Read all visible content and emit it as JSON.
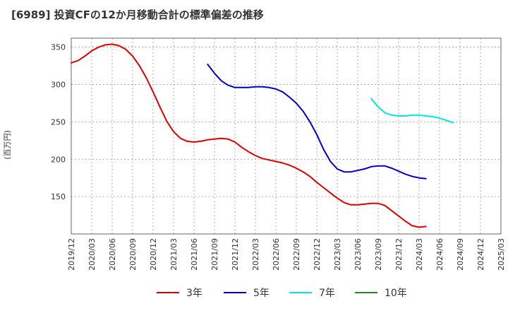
{
  "chart_data": {
    "type": "line",
    "title": "[6989]  投資CFの12か月移動合計の標準偏差の推移",
    "ylabel": "(百万円)",
    "xlabel": "",
    "ylim": [
      100,
      362
    ],
    "yticks": [
      150,
      200,
      250,
      300,
      350
    ],
    "x_ticks": [
      "2019/12",
      "2020/03",
      "2020/06",
      "2020/09",
      "2020/12",
      "2021/03",
      "2021/06",
      "2021/09",
      "2021/12",
      "2022/03",
      "2022/06",
      "2022/09",
      "2022/12",
      "2023/03",
      "2023/06",
      "2023/09",
      "2023/12",
      "2024/03",
      "2024/06",
      "2024/09",
      "2024/12",
      "2025/03"
    ],
    "grid": true,
    "legend_position": "bottom",
    "series": [
      {
        "name": "3年",
        "color": "#dd0000",
        "points": [
          [
            "2019/12",
            329
          ],
          [
            "2020/01",
            332
          ],
          [
            "2020/02",
            338
          ],
          [
            "2020/03",
            345
          ],
          [
            "2020/04",
            350
          ],
          [
            "2020/05",
            353
          ],
          [
            "2020/06",
            354
          ],
          [
            "2020/07",
            352
          ],
          [
            "2020/08",
            347
          ],
          [
            "2020/09",
            338
          ],
          [
            "2020/10",
            325
          ],
          [
            "2020/11",
            309
          ],
          [
            "2020/12",
            290
          ],
          [
            "2021/01",
            270
          ],
          [
            "2021/02",
            251
          ],
          [
            "2021/03",
            237
          ],
          [
            "2021/04",
            228
          ],
          [
            "2021/05",
            224
          ],
          [
            "2021/06",
            223
          ],
          [
            "2021/07",
            224
          ],
          [
            "2021/08",
            226
          ],
          [
            "2021/09",
            227
          ],
          [
            "2021/10",
            228
          ],
          [
            "2021/11",
            227
          ],
          [
            "2021/12",
            223
          ],
          [
            "2022/01",
            216
          ],
          [
            "2022/02",
            210
          ],
          [
            "2022/03",
            205
          ],
          [
            "2022/04",
            201
          ],
          [
            "2022/05",
            199
          ],
          [
            "2022/06",
            197
          ],
          [
            "2022/07",
            195
          ],
          [
            "2022/08",
            192
          ],
          [
            "2022/09",
            188
          ],
          [
            "2022/10",
            183
          ],
          [
            "2022/11",
            177
          ],
          [
            "2022/12",
            169
          ],
          [
            "2023/01",
            162
          ],
          [
            "2023/02",
            155
          ],
          [
            "2023/03",
            148
          ],
          [
            "2023/04",
            142
          ],
          [
            "2023/05",
            139
          ],
          [
            "2023/06",
            139
          ],
          [
            "2023/07",
            140
          ],
          [
            "2023/08",
            141
          ],
          [
            "2023/09",
            141
          ],
          [
            "2023/10",
            138
          ],
          [
            "2023/11",
            131
          ],
          [
            "2023/12",
            124
          ],
          [
            "2024/01",
            117
          ],
          [
            "2024/02",
            111
          ],
          [
            "2024/03",
            109
          ],
          [
            "2024/04",
            110
          ]
        ]
      },
      {
        "name": "5年",
        "color": "#0000cc",
        "points": [
          [
            "2021/08",
            327
          ],
          [
            "2021/09",
            315
          ],
          [
            "2021/10",
            305
          ],
          [
            "2021/11",
            299
          ],
          [
            "2021/12",
            296
          ],
          [
            "2022/01",
            296
          ],
          [
            "2022/02",
            296
          ],
          [
            "2022/03",
            297
          ],
          [
            "2022/04",
            297
          ],
          [
            "2022/05",
            296
          ],
          [
            "2022/06",
            294
          ],
          [
            "2022/07",
            290
          ],
          [
            "2022/08",
            283
          ],
          [
            "2022/09",
            275
          ],
          [
            "2022/10",
            264
          ],
          [
            "2022/11",
            250
          ],
          [
            "2022/12",
            233
          ],
          [
            "2023/01",
            213
          ],
          [
            "2023/02",
            197
          ],
          [
            "2023/03",
            187
          ],
          [
            "2023/04",
            183
          ],
          [
            "2023/05",
            183
          ],
          [
            "2023/06",
            185
          ],
          [
            "2023/07",
            187
          ],
          [
            "2023/08",
            190
          ],
          [
            "2023/09",
            191
          ],
          [
            "2023/10",
            191
          ],
          [
            "2023/11",
            188
          ],
          [
            "2023/12",
            184
          ],
          [
            "2024/01",
            180
          ],
          [
            "2024/02",
            177
          ],
          [
            "2024/03",
            175
          ],
          [
            "2024/04",
            174
          ]
        ]
      },
      {
        "name": "7年",
        "color": "#00e5ee",
        "points": [
          [
            "2023/08",
            281
          ],
          [
            "2023/09",
            270
          ],
          [
            "2023/10",
            262
          ],
          [
            "2023/11",
            259
          ],
          [
            "2023/12",
            258
          ],
          [
            "2024/01",
            258
          ],
          [
            "2024/02",
            259
          ],
          [
            "2024/03",
            259
          ],
          [
            "2024/04",
            258
          ],
          [
            "2024/05",
            257
          ],
          [
            "2024/06",
            255
          ],
          [
            "2024/07",
            252
          ],
          [
            "2024/08",
            249
          ]
        ]
      },
      {
        "name": "10年",
        "color": "#228b22",
        "points": []
      }
    ]
  }
}
